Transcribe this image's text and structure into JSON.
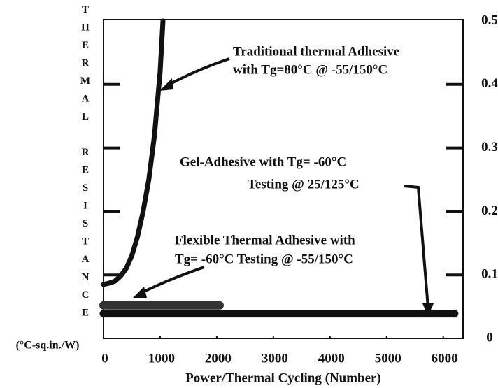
{
  "chart_data": {
    "type": "line",
    "y_label": "THERMAL RESISTANCE",
    "y_unit": "(°C-sq.in./W)",
    "x_label": "Power/Thermal Cycling (Number)",
    "xlim": [
      0,
      6350
    ],
    "xticks": [
      0,
      1000,
      2000,
      3000,
      4000,
      5000,
      6000
    ],
    "ylim": [
      0,
      0.5
    ],
    "yticks": [
      0,
      0.1,
      0.2,
      0.3,
      0.4,
      0.5
    ],
    "series": [
      {
        "name": "Traditional thermal Adhesive with Tg=80°C @ -55/150°C",
        "color": "#111111",
        "x": [
          0,
          100,
          200,
          300,
          400,
          500,
          600,
          700,
          800,
          900,
          1000,
          1050
        ],
        "values": [
          0.085,
          0.087,
          0.09,
          0.098,
          0.11,
          0.13,
          0.16,
          0.2,
          0.25,
          0.32,
          0.42,
          0.5
        ]
      },
      {
        "name": "Flexible Thermal Adhesive with Tg= -60°C Testing @ -55/150°C",
        "color": "#333333",
        "x": [
          0,
          2050
        ],
        "values": [
          0.052,
          0.052
        ]
      },
      {
        "name": "Gel-Adhesive with Tg= -60°C Testing @ 25/125°C",
        "color": "#111111",
        "x": [
          0,
          6200
        ],
        "values": [
          0.039,
          0.039
        ]
      }
    ],
    "annotations": [
      "Traditional thermal Adhesive",
      "with Tg=80°C  @ -55/150°C",
      "Gel-Adhesive with Tg= -60°C",
      "Testing  @ 25/125°C",
      "Flexible Thermal Adhesive with",
      "Tg= -60°C  Testing @ -55/150°C"
    ]
  }
}
